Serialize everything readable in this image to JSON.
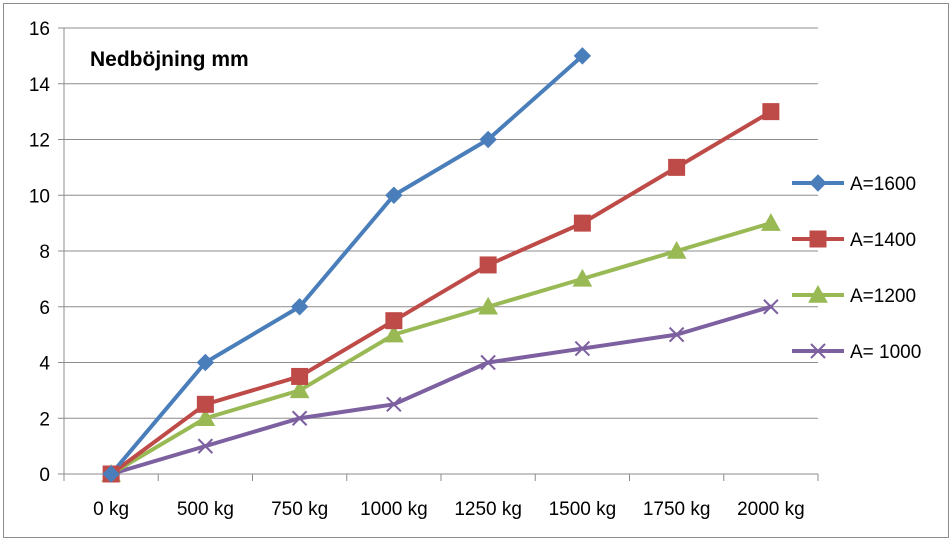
{
  "chart_data": {
    "type": "line",
    "title": "Nedböjning mm",
    "xlabel": "",
    "ylabel": "",
    "categories": [
      "0 kg",
      "500 kg",
      "750 kg",
      "1000 kg",
      "1250 kg",
      "1500 kg",
      "1750 kg",
      "2000 kg"
    ],
    "ylim": [
      0,
      16
    ],
    "yticks": [
      "0",
      "2",
      "4",
      "6",
      "8",
      "10",
      "12",
      "14",
      "16"
    ],
    "grid": true,
    "legend_position": "right",
    "series": [
      {
        "name": "A=1600",
        "color": "#4a7ebb",
        "marker": "diamond",
        "values": [
          0,
          4,
          6,
          10,
          12,
          15,
          null,
          null
        ]
      },
      {
        "name": "A=1400",
        "color": "#be4b48",
        "marker": "square",
        "values": [
          0,
          2.5,
          3.5,
          5.5,
          7.5,
          9,
          11,
          13
        ]
      },
      {
        "name": "A=1200",
        "color": "#98b954",
        "marker": "triangle",
        "values": [
          0,
          2,
          3,
          5,
          6,
          7,
          8,
          9
        ]
      },
      {
        "name": "A= 1000",
        "color": "#7d60a0",
        "marker": "x",
        "values": [
          0,
          1,
          2,
          2.5,
          4,
          4.5,
          5,
          6
        ]
      }
    ]
  }
}
